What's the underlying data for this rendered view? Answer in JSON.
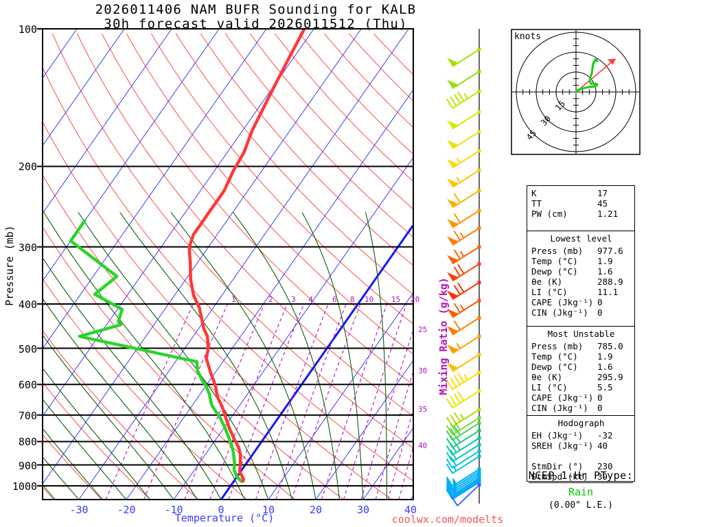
{
  "title": {
    "line1": "2026011406 NAM BUFR Sounding for KALB",
    "line2": "30h forecast valid 2026011512 (Thu)"
  },
  "watermark": "coolwx.com/modelts",
  "axes": {
    "pressure_label": "Pressure (mb)",
    "pressure_ticks": [
      100,
      200,
      300,
      400,
      500,
      600,
      700,
      800,
      900,
      1000
    ],
    "temperature_label": "Temperature (°C)",
    "temperature_ticks": [
      -30,
      -20,
      -10,
      0,
      10,
      20,
      30,
      40
    ],
    "mixing_ratio_label": "Mixing Ratio (g/kg)",
    "mixing_ratio_top_labels": [
      1,
      2,
      3,
      4,
      6,
      8,
      10,
      15,
      20
    ],
    "mixing_ratio_right_labels": [
      25,
      30,
      35,
      40
    ]
  },
  "hodograph": {
    "unit_label": "knots",
    "rings_kt": [
      15,
      30,
      45
    ],
    "trace_uv_kt": [
      [
        0,
        0
      ],
      [
        0.5,
        1
      ],
      [
        4.7,
        2.6
      ],
      [
        9.3,
        3.6
      ],
      [
        13.4,
        4.1
      ],
      [
        15.5,
        4.7
      ],
      [
        16,
        5.7
      ],
      [
        14.5,
        6.2
      ],
      [
        11.4,
        6.2
      ],
      [
        10.3,
        8.3
      ],
      [
        10.9,
        11.4
      ],
      [
        11.9,
        14
      ],
      [
        12.4,
        17.6
      ],
      [
        12.9,
        21.2
      ],
      [
        14.5,
        23.8
      ]
    ],
    "storm_dir_deg": 230,
    "storm_spd_kt": 39
  },
  "indices": {
    "sections": [
      {
        "title": null,
        "rows": [
          [
            "K",
            "17"
          ],
          [
            "TT",
            "45"
          ],
          [
            "PW (cm)",
            "1.21"
          ]
        ],
        "height": 58
      },
      {
        "title": "Lowest level",
        "rows": [
          [
            "Press (mb)",
            "977.6"
          ],
          [
            "Temp (°C)",
            "1.9"
          ],
          [
            "Dewp (°C)",
            "1.6"
          ],
          [
            "θe (K)",
            "288.9"
          ],
          [
            "LI (°C)",
            "11.1"
          ],
          [
            "CAPE (Jkg⁻¹)",
            "0"
          ],
          [
            "CIN (Jkg⁻¹)",
            "0"
          ]
        ],
        "height": 131
      },
      {
        "title": "Most Unstable",
        "rows": [
          [
            "Press (mb)",
            "785.0"
          ],
          [
            "Temp (°C)",
            "1.9"
          ],
          [
            "Dewp (°C)",
            "1.6"
          ],
          [
            "θe (K)",
            "295.9"
          ],
          [
            "LI (°C)",
            "5.5"
          ],
          [
            "CAPE (Jkg⁻¹)",
            "0"
          ],
          [
            "CIN (Jkg⁻¹)",
            "0"
          ]
        ],
        "height": 122
      },
      {
        "title": "Hodograph",
        "rows": [
          [
            "EH (Jkg⁻¹)",
            "-32"
          ],
          [
            "SREH (Jkg⁻¹)",
            "40"
          ],
          [
            "",
            ""
          ],
          [
            "StmDir (°)",
            "230"
          ],
          [
            "StmSpd (kt)",
            "39"
          ]
        ],
        "height": 88
      }
    ]
  },
  "ptype": {
    "title": "NCEP 1-Hr PType:",
    "value": "Rain",
    "extra": "(0.00\" L.E.)"
  },
  "colors": {
    "temperature_trace": "#ff3838",
    "dewpoint_trace": "#2ad42a",
    "isotherm": "#3a3aff",
    "freezing_isotherm": "#1515ff",
    "dry_adiabat": "#ff4a4a",
    "moist_adiabat": "#0a5c0a",
    "mixing_ratio": "#c020c0",
    "pressure_line": "#000000",
    "barb_staff": "#666666",
    "hodo_trace": "#22cc22",
    "storm_vector": "#ff4040",
    "ptype_value": "#00c800",
    "watermark": "#ff5050",
    "temp_axis": "#3a3aff",
    "mixing_axis": "#b812b8"
  },
  "chart_data": {
    "type": "skewt-log-p sounding",
    "pressure_range_mb": [
      100,
      1050
    ],
    "temperature_axis_range_c": [
      -30,
      40
    ],
    "isotherms_c": {
      "from": -110,
      "to": 40,
      "step": 10,
      "highlight": 0
    },
    "dry_adiabats_c": {
      "from": -40,
      "to": 180,
      "step": 10
    },
    "moist_adiabats_c": {
      "from": -35,
      "to": 35,
      "step": 5,
      "top_mb": 250
    },
    "mixing_ratio_lines_gkg": [
      0.5,
      1,
      2,
      3,
      4,
      6,
      8,
      10,
      15,
      20,
      25,
      30,
      35,
      40
    ],
    "mixing_ratio_top_mb": 400,
    "temperature_curve_p_t": [
      [
        100,
        -52
      ],
      [
        115,
        -51
      ],
      [
        131,
        -50
      ],
      [
        148,
        -49
      ],
      [
        167,
        -48
      ],
      [
        186,
        -46.5
      ],
      [
        205,
        -46
      ],
      [
        226,
        -45
      ],
      [
        248,
        -45
      ],
      [
        266,
        -45
      ],
      [
        282,
        -45
      ],
      [
        301,
        -44
      ],
      [
        325,
        -41.5
      ],
      [
        353,
        -39
      ],
      [
        383,
        -36
      ],
      [
        407,
        -33
      ],
      [
        452,
        -29
      ],
      [
        471,
        -27
      ],
      [
        501,
        -25
      ],
      [
        526,
        -24
      ],
      [
        565,
        -21
      ],
      [
        604,
        -18
      ],
      [
        638,
        -16
      ],
      [
        671,
        -13.5
      ],
      [
        703,
        -11.5
      ],
      [
        745,
        -9
      ],
      [
        793,
        -6
      ],
      [
        824,
        -4
      ],
      [
        856,
        -2.5
      ],
      [
        902,
        -1
      ],
      [
        929,
        -0.3
      ],
      [
        953,
        1
      ],
      [
        968,
        1.8
      ],
      [
        977.6,
        1.9
      ]
    ],
    "dewpoint_curve_p_t": [
      [
        263,
        -70
      ],
      [
        291,
        -70
      ],
      [
        348,
        -55
      ],
      [
        381,
        -57
      ],
      [
        411,
        -49
      ],
      [
        437,
        -48
      ],
      [
        444,
        -47
      ],
      [
        471,
        -54
      ],
      [
        535,
        -25.5
      ],
      [
        560,
        -24
      ],
      [
        589,
        -21.5
      ],
      [
        604,
        -20
      ],
      [
        631,
        -18
      ],
      [
        665,
        -16
      ],
      [
        689,
        -14
      ],
      [
        700,
        -13
      ],
      [
        743,
        -10
      ],
      [
        783,
        -7.6
      ],
      [
        811,
        -6
      ],
      [
        847,
        -4.3
      ],
      [
        893,
        -2.5
      ],
      [
        918,
        -1.8
      ],
      [
        940,
        -0.8
      ],
      [
        955,
        0
      ],
      [
        977.6,
        1.6
      ]
    ],
    "wind_barbs": [
      {
        "p": 111,
        "spd": 50,
        "color": "#a2e000"
      },
      {
        "p": 124,
        "spd": 50,
        "color": "#94e000"
      },
      {
        "p": 137,
        "spd": 45,
        "color": "#bce800"
      },
      {
        "p": 152,
        "spd": 50,
        "color": "#d8e800"
      },
      {
        "p": 168,
        "spd": 50,
        "color": "#ece200"
      },
      {
        "p": 185,
        "spd": 55,
        "color": "#ffd800"
      },
      {
        "p": 204,
        "spd": 55,
        "color": "#ffc600"
      },
      {
        "p": 226,
        "spd": 60,
        "color": "#ffb000"
      },
      {
        "p": 250,
        "spd": 60,
        "color": "#ff9800"
      },
      {
        "p": 273,
        "spd": 65,
        "color": "#ff7e00"
      },
      {
        "p": 300,
        "spd": 65,
        "color": "#ff6000"
      },
      {
        "p": 327,
        "spd": 70,
        "color": "#ff4000"
      },
      {
        "p": 359,
        "spd": 70,
        "color": "#ff2e00"
      },
      {
        "p": 393,
        "spd": 65,
        "color": "#ff5800"
      },
      {
        "p": 429,
        "spd": 60,
        "color": "#ff7a00"
      },
      {
        "p": 471,
        "spd": 55,
        "color": "#ff9c00"
      },
      {
        "p": 516,
        "spd": 50,
        "color": "#ffbe00"
      },
      {
        "p": 565,
        "spd": 45,
        "color": "#ffdc00"
      },
      {
        "p": 620,
        "spd": 40,
        "color": "#e8e800"
      },
      {
        "p": 681,
        "spd": 35,
        "color": "#b0e000"
      },
      {
        "p": 710,
        "spd": 30,
        "color": "#78d830"
      },
      {
        "p": 729,
        "spd": 30,
        "color": "#48d24c"
      },
      {
        "p": 757,
        "spd": 25,
        "color": "#18cc74"
      },
      {
        "p": 786,
        "spd": 25,
        "color": "#00cc9c"
      },
      {
        "p": 813,
        "spd": 20,
        "color": "#00c8c0"
      },
      {
        "p": 840,
        "spd": 20,
        "color": "#00c4dc"
      },
      {
        "p": 862,
        "spd": 18,
        "color": "#00bce8"
      },
      {
        "p": 920,
        "spd": 15,
        "color": "#00b2f2"
      },
      {
        "p": 930,
        "spd": 15,
        "color": "#00b2f2"
      },
      {
        "p": 940,
        "spd": 15,
        "color": "#00b0f4"
      },
      {
        "p": 950,
        "spd": 15,
        "color": "#00aef6"
      },
      {
        "p": 960,
        "spd": 15,
        "color": "#00acf8"
      },
      {
        "p": 968,
        "spd": 15,
        "color": "#00aafa"
      },
      {
        "p": 976,
        "spd": 15,
        "color": "#00a8fc"
      },
      {
        "p": 982,
        "spd": 15,
        "color": "#00a6fe"
      },
      {
        "p": 995,
        "spd": 10,
        "color": "#3c64ff",
        "surface": true
      }
    ]
  }
}
